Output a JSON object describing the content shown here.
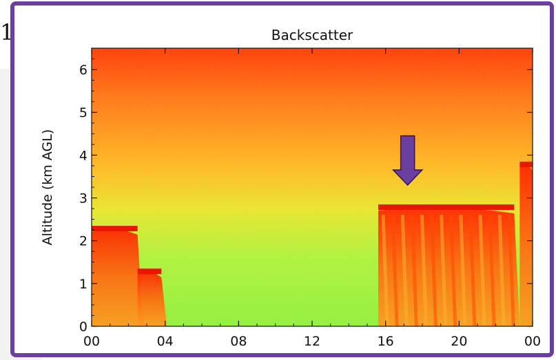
{
  "page_number": "1",
  "colors": {
    "frame": "#6b3fa0",
    "arrow": "#6b3fa0",
    "high_backscatter": "#ff2a00",
    "mid_backscatter": "#ff9a2a",
    "low_backscatter": "#9cf23a"
  },
  "chart_data": {
    "type": "heatmap",
    "title": "Backscatter",
    "ylabel": "Altitude (km AGL)",
    "xlabel": "",
    "x_ticks": [
      "00",
      "04",
      "08",
      "12",
      "16",
      "20",
      "00"
    ],
    "x_range_hours": [
      0,
      24
    ],
    "y_ticks": [
      0,
      1,
      2,
      3,
      4,
      5,
      6
    ],
    "ylim": [
      0,
      6.5
    ],
    "colorscale": [
      "#8ef03a",
      "#ffd02a",
      "#ff8a1e",
      "#ff2a00"
    ],
    "features": [
      {
        "kind": "plume",
        "x0": 0,
        "x1": 2.5,
        "top": 2.3
      },
      {
        "kind": "plume",
        "x0": 2.5,
        "x1": 3.8,
        "top": 1.3
      },
      {
        "kind": "plume",
        "x0": 15.6,
        "x1": 23.0,
        "top": 2.8
      },
      {
        "kind": "plume",
        "x0": 23.3,
        "x1": 24.0,
        "top": 3.8
      }
    ],
    "annotation": {
      "kind": "arrow",
      "x": 17.2,
      "y_tip": 3.3,
      "y_tail": 4.45
    }
  }
}
